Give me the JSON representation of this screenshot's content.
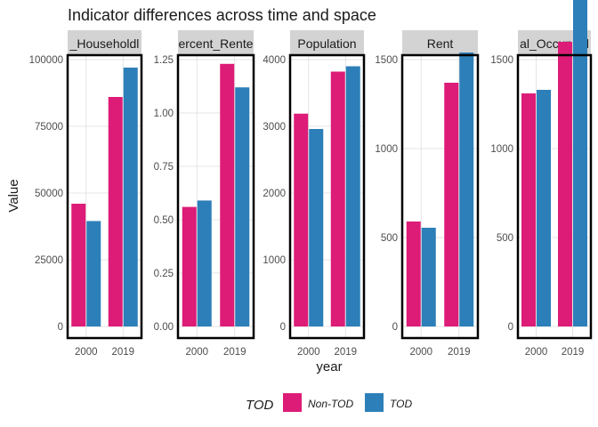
{
  "chart_data": {
    "type": "bar",
    "title": "Indicator differences across time and space",
    "xlabel": "year",
    "ylabel": "Value",
    "categories": [
      "2000",
      "2019"
    ],
    "legend": {
      "title": "TOD",
      "position": "bottom",
      "entries": [
        {
          "name": "Non-TOD",
          "color": "#dd1c77"
        },
        {
          "name": "TOD",
          "color": "#2c7fb8"
        }
      ]
    },
    "facets": [
      {
        "strip_label": "_Householdl",
        "ylim": [
          0,
          100000
        ],
        "ticks": [
          "0",
          "25000",
          "50000",
          "75000",
          "100000"
        ],
        "series": [
          {
            "name": "Non-TOD",
            "values": [
              46000,
              86000
            ]
          },
          {
            "name": "TOD",
            "values": [
              39500,
              97000
            ]
          }
        ]
      },
      {
        "strip_label": "ercent_Rente",
        "ylim": [
          0,
          1.25
        ],
        "ticks": [
          "0.00",
          "0.25",
          "0.50",
          "0.75",
          "1.00",
          "1.25"
        ],
        "series": [
          {
            "name": "Non-TOD",
            "values": [
              0.56,
              1.23
            ]
          },
          {
            "name": "TOD",
            "values": [
              0.59,
              1.12
            ]
          }
        ]
      },
      {
        "strip_label": "Population",
        "ylim": [
          0,
          4000
        ],
        "ticks": [
          "0",
          "1000",
          "2000",
          "3000",
          "4000"
        ],
        "series": [
          {
            "name": "Non-TOD",
            "values": [
              3190,
              3820
            ]
          },
          {
            "name": "TOD",
            "values": [
              2960,
              3900
            ]
          }
        ]
      },
      {
        "strip_label": "Rent",
        "ylim": [
          0,
          1500
        ],
        "ticks": [
          "0",
          "500",
          "1000",
          "1500"
        ],
        "series": [
          {
            "name": "Non-TOD",
            "values": [
              590,
              1370
            ]
          },
          {
            "name": "TOD",
            "values": [
              555,
              1540
            ]
          }
        ]
      },
      {
        "strip_label": "al_Occupied",
        "ylim": [
          0,
          1500
        ],
        "ticks": [
          "0",
          "500",
          "1000",
          "1500"
        ],
        "series": [
          {
            "name": "Non-TOD",
            "values": [
              1310,
              1600
            ]
          },
          {
            "name": "TOD",
            "values": [
              1330,
              1860
            ]
          }
        ]
      }
    ]
  }
}
